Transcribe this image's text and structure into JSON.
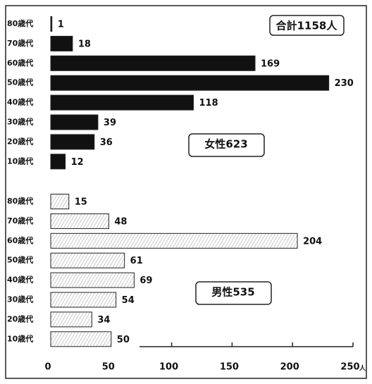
{
  "chart_data": {
    "type": "bar",
    "orientation": "horizontal",
    "categories": [
      "80歳代",
      "70歳代",
      "60歳代",
      "50歳代",
      "40歳代",
      "30歳代",
      "20歳代",
      "10歳代"
    ],
    "series": [
      {
        "name": "女性623",
        "color": "#111111",
        "pattern": "solid",
        "values": [
          1,
          18,
          169,
          230,
          118,
          39,
          36,
          12
        ]
      },
      {
        "name": "男性535",
        "color": "#ffffff",
        "pattern": "hatch",
        "values": [
          15,
          48,
          204,
          61,
          69,
          54,
          34,
          50
        ]
      }
    ],
    "annotation": "合計1158人",
    "xlabel": "人",
    "xlim": [
      0,
      250
    ],
    "xticks": [
      0,
      50,
      100,
      150,
      200,
      250
    ]
  }
}
